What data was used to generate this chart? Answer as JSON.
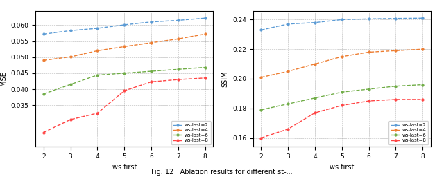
{
  "x": [
    2,
    3,
    4,
    5,
    6,
    7,
    8
  ],
  "mse": {
    "ws-last=2": [
      0.0572,
      0.0583,
      0.059,
      0.0601,
      0.061,
      0.0615,
      0.0622
    ],
    "ws-last=4": [
      0.049,
      0.0501,
      0.052,
      0.0533,
      0.0545,
      0.0557,
      0.0572
    ],
    "ws-last=6": [
      0.0385,
      0.0415,
      0.0444,
      0.045,
      0.0456,
      0.0462,
      0.0468
    ],
    "ws-last=8": [
      0.0265,
      0.0305,
      0.0325,
      0.0395,
      0.0423,
      0.043,
      0.0435
    ]
  },
  "lpips": {
    "ws-last=2": [
      0.233,
      0.237,
      0.238,
      0.24,
      0.2405,
      0.2408,
      0.241
    ],
    "ws-last=4": [
      0.201,
      0.205,
      0.21,
      0.215,
      0.218,
      0.219,
      0.22
    ],
    "ws-last=6": [
      0.179,
      0.183,
      0.187,
      0.191,
      0.193,
      0.195,
      0.196
    ],
    "ws-last=8": [
      0.16,
      0.166,
      0.177,
      0.182,
      0.185,
      0.186,
      0.186
    ]
  },
  "colors": {
    "ws-last=2": "#5B9BD5",
    "ws-last=4": "#ED7D31",
    "ws-last=6": "#70AD47",
    "ws-last=8": "#FF4444"
  },
  "xlabel": "ws first",
  "ylabel_left": "MSE",
  "ylabel_right": "SSIM",
  "legend_labels": [
    "ws-last=2",
    "ws-last=4",
    "ws-last=6",
    "ws-last=8"
  ],
  "caption": "Fig. 12   Ablation results for different st-...",
  "mse_ylim": [
    0.022,
    0.0645
  ],
  "mse_yticks": [
    0.035,
    0.04,
    0.045,
    0.05,
    0.055,
    0.06
  ],
  "lpips_ylim": [
    0.154,
    0.246
  ],
  "lpips_yticks": [
    0.16,
    0.18,
    0.2,
    0.22,
    0.24
  ],
  "xticks": [
    2,
    3,
    4,
    5,
    6,
    7,
    8
  ]
}
